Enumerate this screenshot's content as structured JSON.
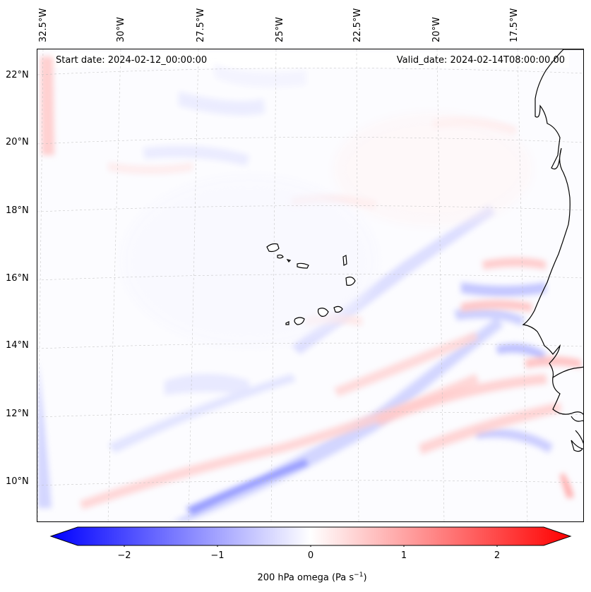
{
  "header": {
    "start_date": "Start date: 2024-02-12_00:00:00",
    "valid_date": "Valid_date: 2024-02-14T08:00:00.00"
  },
  "axes": {
    "latitude_labels": [
      "22°N",
      "20°N",
      "18°N",
      "16°N",
      "14°N",
      "12°N",
      "10°N"
    ],
    "longitude_labels": [
      "32.5°W",
      "30°W",
      "27.5°W",
      "25°W",
      "22.5°W",
      "20°W",
      "17.5°W"
    ]
  },
  "colorbar": {
    "ticks": [
      "−2",
      "−1",
      "0",
      "1",
      "2"
    ],
    "label_main": "200 hPa omega (Pa s",
    "label_exp": "−1",
    "label_close": ")",
    "min": -2.6,
    "max": 2.6,
    "low_color": "#0000ff",
    "mid_color": "#ffffff",
    "high_color": "#ff0000"
  },
  "colors": {
    "coastline": "#000000",
    "gridline": "#bbbbbb"
  }
}
